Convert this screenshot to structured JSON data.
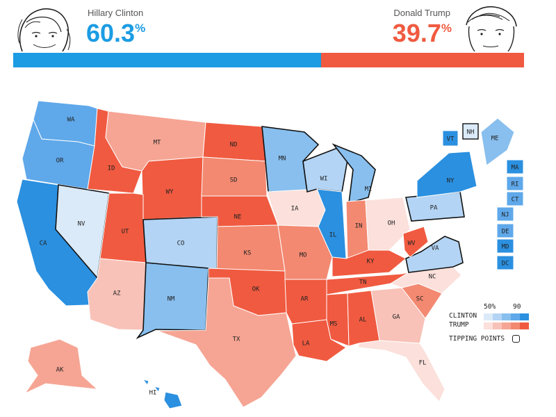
{
  "header": {
    "clinton": {
      "name": "Hillary Clinton",
      "pct_value": "60.3",
      "pct_unit": "%",
      "share": 0.603,
      "color": "#1b9ce3"
    },
    "trump": {
      "name": "Donald Trump",
      "pct_value": "39.7",
      "pct_unit": "%",
      "share": 0.397,
      "color": "#f05a40"
    }
  },
  "states": [
    {
      "abbr": "WA",
      "party": "D",
      "shade": 4
    },
    {
      "abbr": "OR",
      "party": "D",
      "shade": 4
    },
    {
      "abbr": "CA",
      "party": "D",
      "shade": 5
    },
    {
      "abbr": "NV",
      "party": "D",
      "shade": 1
    },
    {
      "abbr": "ID",
      "party": "R",
      "shade": 5
    },
    {
      "abbr": "MT",
      "party": "R",
      "shade": 3
    },
    {
      "abbr": "WY",
      "party": "R",
      "shade": 5
    },
    {
      "abbr": "UT",
      "party": "R",
      "shade": 5
    },
    {
      "abbr": "AZ",
      "party": "R",
      "shade": 2
    },
    {
      "abbr": "CO",
      "party": "D",
      "shade": 2
    },
    {
      "abbr": "NM",
      "party": "D",
      "shade": 3
    },
    {
      "abbr": "ND",
      "party": "R",
      "shade": 5
    },
    {
      "abbr": "SD",
      "party": "R",
      "shade": 4
    },
    {
      "abbr": "NE",
      "party": "R",
      "shade": 5
    },
    {
      "abbr": "KS",
      "party": "R",
      "shade": 4
    },
    {
      "abbr": "OK",
      "party": "R",
      "shade": 5
    },
    {
      "abbr": "TX",
      "party": "R",
      "shade": 3
    },
    {
      "abbr": "MN",
      "party": "D",
      "shade": 3
    },
    {
      "abbr": "IA",
      "party": "R",
      "shade": 1
    },
    {
      "abbr": "MO",
      "party": "R",
      "shade": 4
    },
    {
      "abbr": "AR",
      "party": "R",
      "shade": 5
    },
    {
      "abbr": "LA",
      "party": "R",
      "shade": 5
    },
    {
      "abbr": "WI",
      "party": "D",
      "shade": 2
    },
    {
      "abbr": "IL",
      "party": "D",
      "shade": 5
    },
    {
      "abbr": "MI",
      "party": "D",
      "shade": 3
    },
    {
      "abbr": "IN",
      "party": "R",
      "shade": 4
    },
    {
      "abbr": "OH",
      "party": "R",
      "shade": 1
    },
    {
      "abbr": "KY",
      "party": "R",
      "shade": 5
    },
    {
      "abbr": "TN",
      "party": "R",
      "shade": 5
    },
    {
      "abbr": "MS",
      "party": "R",
      "shade": 5
    },
    {
      "abbr": "AL",
      "party": "R",
      "shade": 5
    },
    {
      "abbr": "GA",
      "party": "R",
      "shade": 2
    },
    {
      "abbr": "FL",
      "party": "R",
      "shade": 1
    },
    {
      "abbr": "SC",
      "party": "R",
      "shade": 4
    },
    {
      "abbr": "NC",
      "party": "R",
      "shade": 1
    },
    {
      "abbr": "VA",
      "party": "D",
      "shade": 2
    },
    {
      "abbr": "WV",
      "party": "R",
      "shade": 5
    },
    {
      "abbr": "PA",
      "party": "D",
      "shade": 2
    },
    {
      "abbr": "NY",
      "party": "D",
      "shade": 5
    },
    {
      "abbr": "ME",
      "party": "D",
      "shade": 3
    },
    {
      "abbr": "AK",
      "party": "R",
      "shade": 3
    },
    {
      "abbr": "HI",
      "party": "D",
      "shade": 5
    }
  ],
  "small_states": [
    {
      "abbr": "VT",
      "party": "D",
      "shade": 5
    },
    {
      "abbr": "NH",
      "party": "D",
      "shade": 1
    },
    {
      "abbr": "MA",
      "party": "D",
      "shade": 5
    },
    {
      "abbr": "RI",
      "party": "D",
      "shade": 4
    },
    {
      "abbr": "CT",
      "party": "D",
      "shade": 4
    },
    {
      "abbr": "NJ",
      "party": "D",
      "shade": 4
    },
    {
      "abbr": "DE",
      "party": "D",
      "shade": 4
    },
    {
      "abbr": "MD",
      "party": "D",
      "shade": 5
    },
    {
      "abbr": "DC",
      "party": "D",
      "shade": 5
    }
  ],
  "tipping_points": [
    "WI",
    "MI",
    "PA",
    "CO",
    "VA",
    "MN",
    "NM",
    "NV",
    "NH"
  ],
  "colors": {
    "D": [
      "#dbeaf8",
      "#b3d4f4",
      "#88bfee",
      "#5fa8ea",
      "#2b90e0"
    ],
    "R": [
      "#fbe0db",
      "#f8c2b8",
      "#f6a594",
      "#f38971",
      "#f05a40"
    ]
  },
  "legend": {
    "low": "50%",
    "high": "90",
    "clinton_label": "CLINTON",
    "trump_label": "TRUMP",
    "tipping_label": "TIPPING POINTS"
  }
}
